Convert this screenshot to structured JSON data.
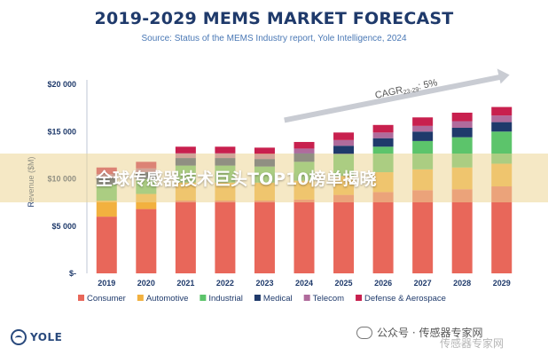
{
  "header": {
    "title": "2019-2029 MEMS MARKET FORECAST",
    "subtitle": "Source: Status of the MEMS Industry report, Yole Intelligence, 2024"
  },
  "banner": {
    "text": "全球传感器技术巨头TOP10榜单揭晓"
  },
  "brand": {
    "logo_text": "YOLE"
  },
  "watermark": {
    "line1": "公众号 · 传感器专家网",
    "line2": "传感器专家网"
  },
  "chart_data": {
    "type": "bar",
    "stacked": true,
    "categories": [
      "2019",
      "2020",
      "2021",
      "2022",
      "2023",
      "2024",
      "2025",
      "2026",
      "2027",
      "2028",
      "2029"
    ],
    "ylabel": "Revenue ($M)",
    "ylim": [
      0,
      20000
    ],
    "yticks": [
      {
        "value": 0,
        "label": "$-"
      },
      {
        "value": 5000,
        "label": "$5 000"
      },
      {
        "value": 10000,
        "label": "$10 000"
      },
      {
        "value": 15000,
        "label": "$15 000"
      },
      {
        "value": 20000,
        "label": "$20 000"
      }
    ],
    "grid": false,
    "legend_position": "bottom",
    "annotation": {
      "text": "CAGR",
      "sub": "23-29",
      "suffix": ": 5%"
    },
    "series": [
      {
        "name": "Consumer",
        "color": "#e8675a",
        "values": [
          6000,
          6800,
          7700,
          7700,
          7700,
          7800,
          8300,
          8600,
          8800,
          8900,
          9200
        ]
      },
      {
        "name": "Automotive",
        "color": "#f2b13f",
        "values": [
          1700,
          1600,
          1900,
          1900,
          1900,
          2000,
          2000,
          2100,
          2200,
          2300,
          2400
        ]
      },
      {
        "name": "Industrial",
        "color": "#5cc46b",
        "values": [
          1700,
          1600,
          1800,
          1800,
          1700,
          2000,
          2300,
          2700,
          3000,
          3200,
          3400
        ]
      },
      {
        "name": "Medical",
        "color": "#1f3a6b",
        "values": [
          700,
          700,
          800,
          800,
          800,
          900,
          900,
          900,
          1000,
          1000,
          1000
        ]
      },
      {
        "name": "Telecom",
        "color": "#b06b9c",
        "values": [
          400,
          400,
          500,
          500,
          500,
          500,
          600,
          600,
          600,
          700,
          700
        ]
      },
      {
        "name": "Defense & Aerospace",
        "color": "#c8204e",
        "values": [
          700,
          700,
          700,
          700,
          700,
          700,
          800,
          800,
          900,
          900,
          900
        ]
      }
    ]
  }
}
